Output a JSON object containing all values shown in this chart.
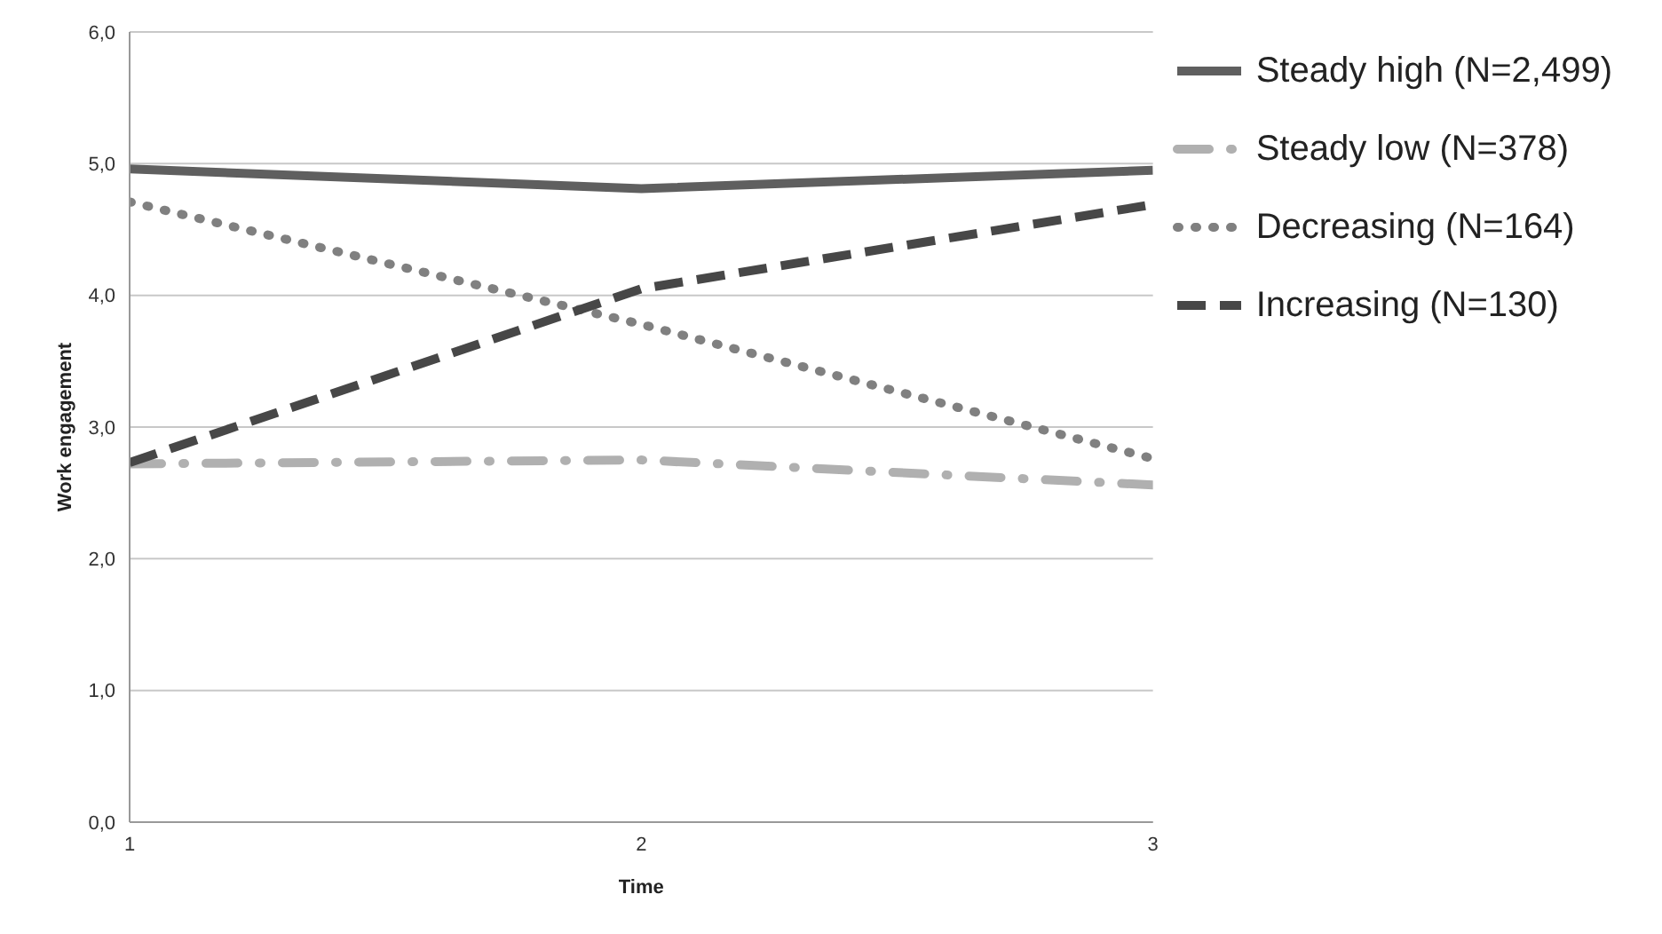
{
  "chart_data": {
    "type": "line",
    "xlabel": "Time",
    "ylabel": "Work engagement",
    "x": [
      1,
      2,
      3
    ],
    "series": [
      {
        "name": "Steady high (N=2,499)",
        "color": "#5f5f5f",
        "values": [
          4.96,
          4.81,
          4.95
        ],
        "line_style": "solid"
      },
      {
        "name": "Steady low (N=378)",
        "color": "#b0b0b0",
        "values": [
          2.72,
          2.75,
          2.56
        ],
        "line_style": "dashdot"
      },
      {
        "name": "Decreasing (N=164)",
        "color": "#808080",
        "values": [
          4.71,
          3.78,
          2.76
        ],
        "line_style": "dotted"
      },
      {
        "name": "Increasing (N=130)",
        "color": "#474747",
        "values": [
          2.73,
          4.05,
          4.69
        ],
        "line_style": "dashed"
      }
    ],
    "xlim": [
      1,
      3
    ],
    "xticks": [
      1,
      2,
      3
    ],
    "ylim": [
      0,
      6
    ],
    "yticks": [
      {
        "value": 0,
        "label": "0,0"
      },
      {
        "value": 1,
        "label": "1,0"
      },
      {
        "value": 2,
        "label": "2,0"
      },
      {
        "value": 3,
        "label": "3,0"
      },
      {
        "value": 4,
        "label": "4,0"
      },
      {
        "value": 5,
        "label": "5,0"
      },
      {
        "value": 6,
        "label": "6,0"
      }
    ],
    "grid": "y",
    "legend": "top right",
    "marker": "none"
  }
}
